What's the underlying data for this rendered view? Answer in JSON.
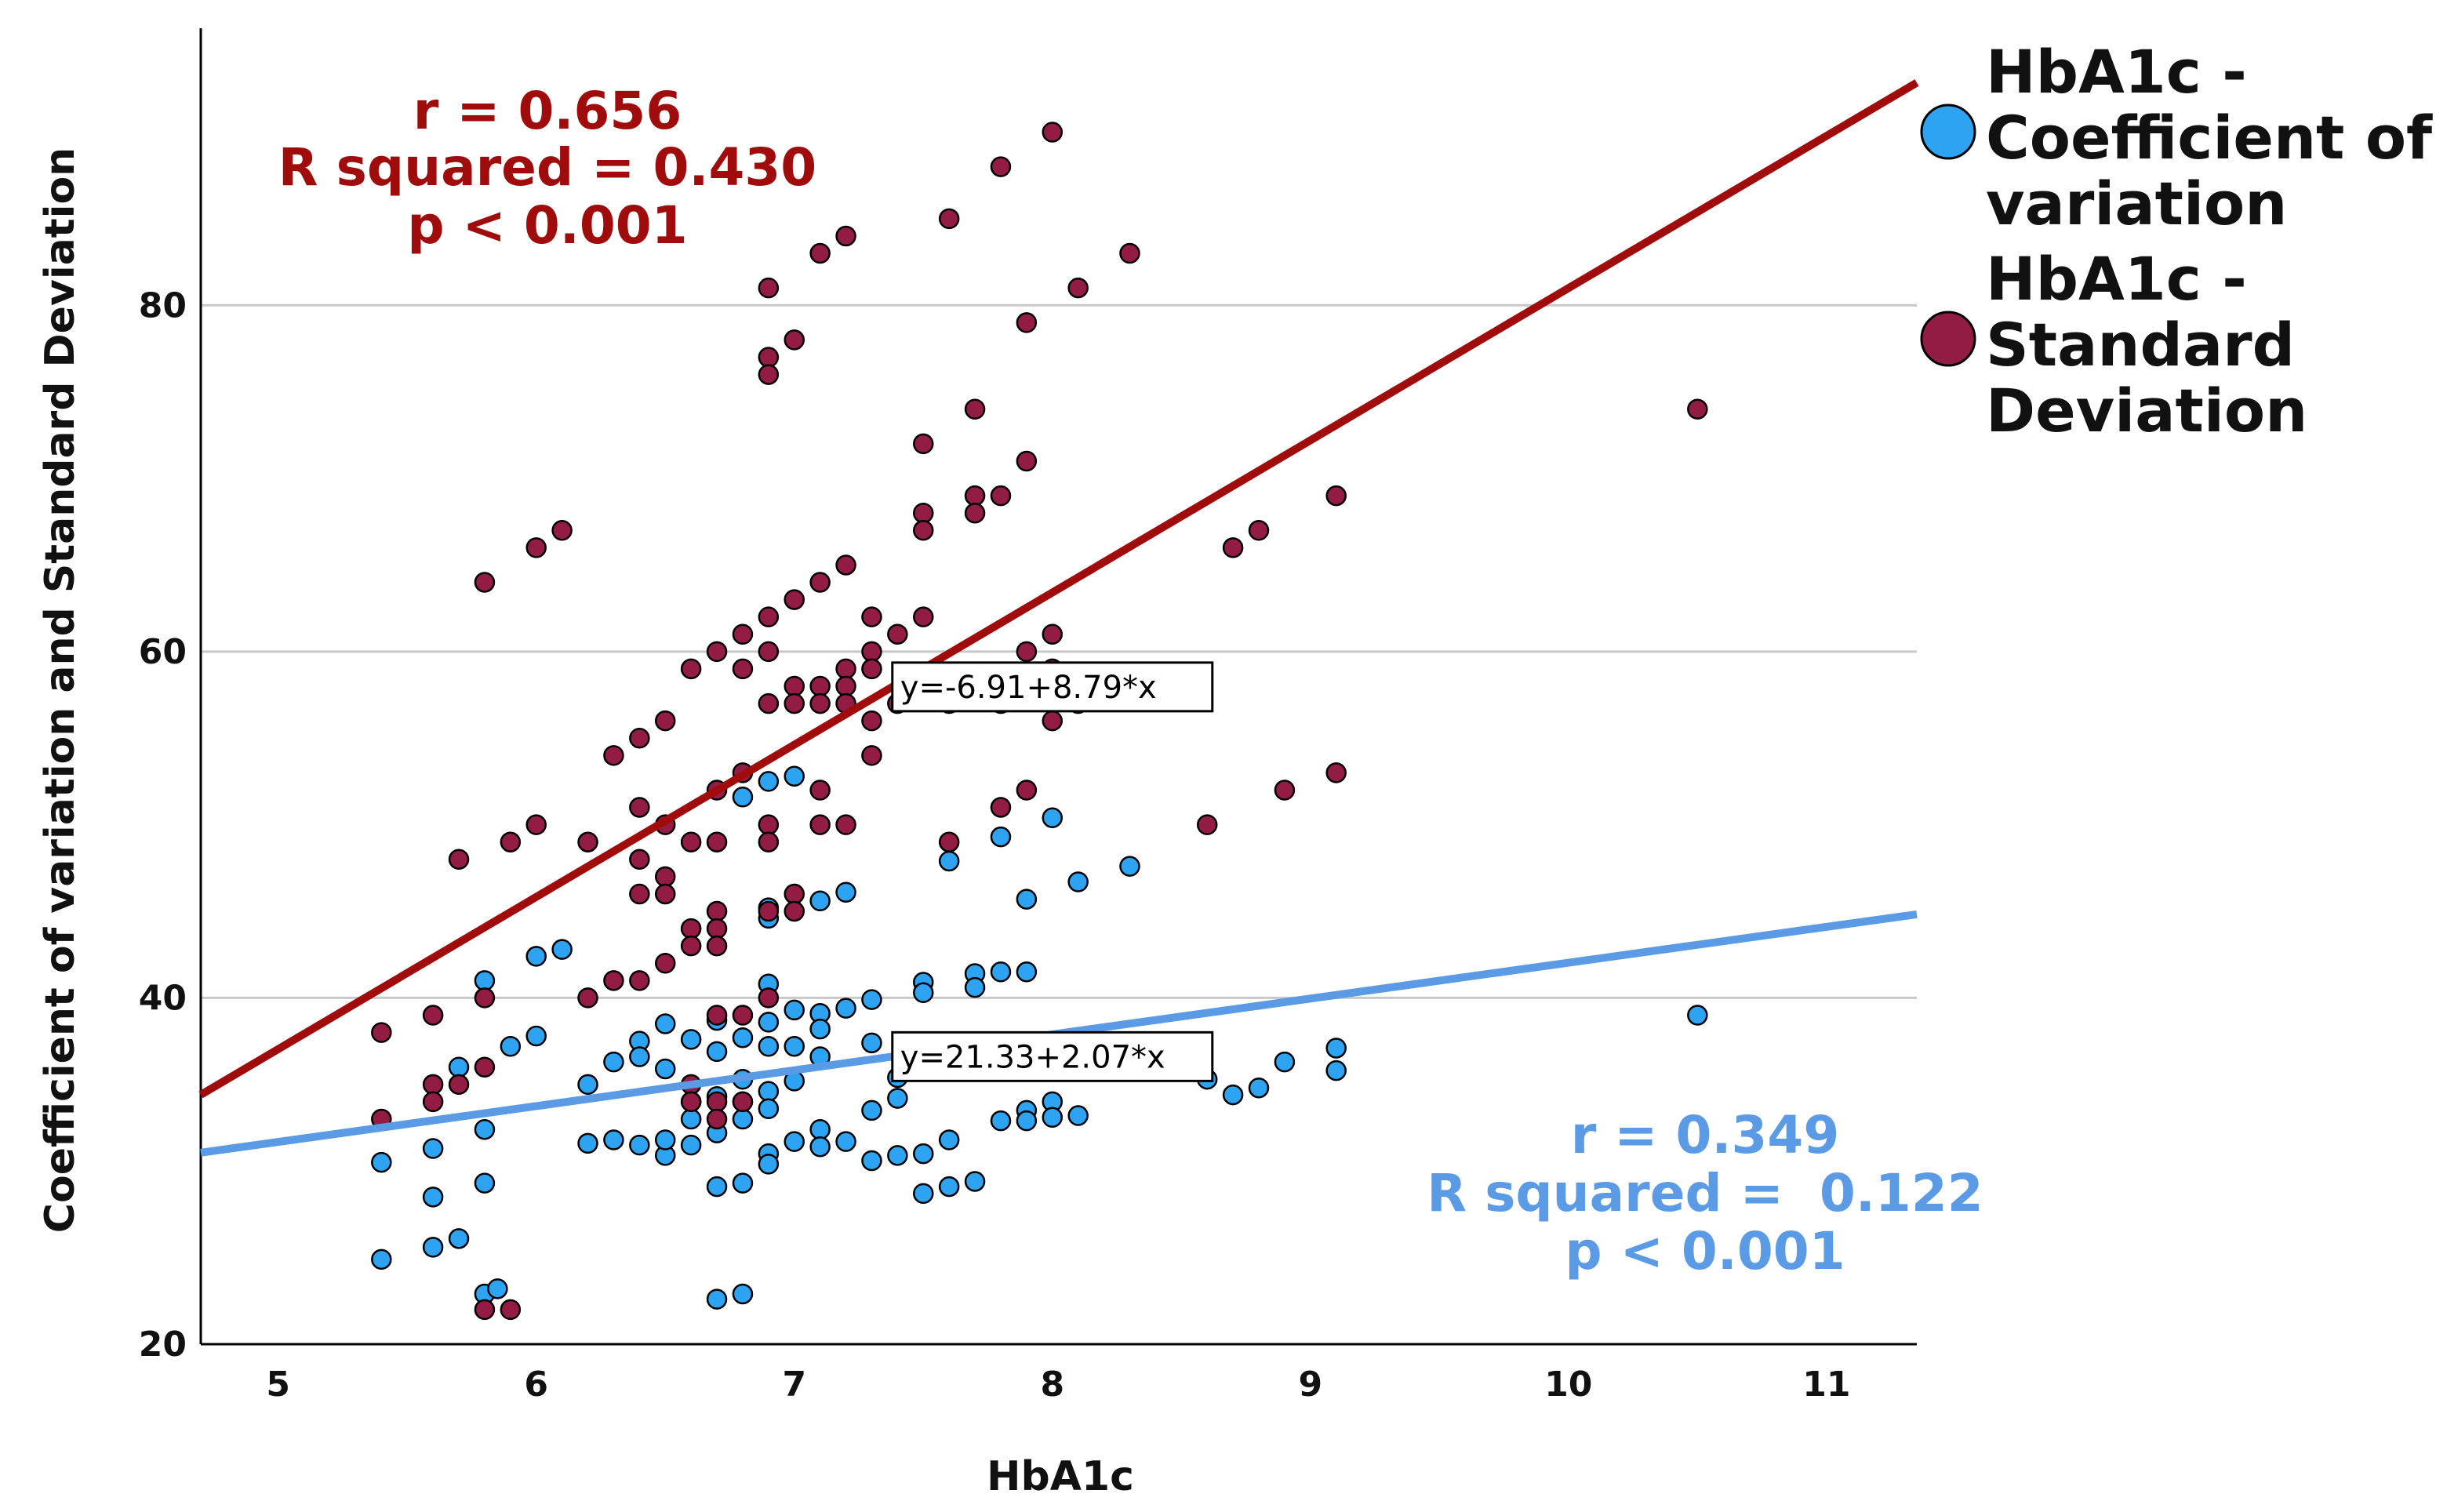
{
  "chart_data": {
    "type": "scatter",
    "xlabel": "HbA1c",
    "ylabel": "Coefficient of variation and Standard Deviation",
    "xlim": [
      4.7,
      11.35
    ],
    "ylim": [
      20,
      96
    ],
    "xticks": [
      5,
      6,
      7,
      8,
      9,
      10,
      11
    ],
    "yticks": [
      20,
      40,
      60,
      80
    ],
    "grid": "horizontal",
    "legend_position": "right",
    "series": [
      {
        "name": "HbA1c - Coefficient of variation",
        "legend_lines": [
          "HbA1c -",
          "Coefficient of",
          "variation"
        ],
        "color": "#2ea3f2",
        "line_color": "#5b9be6",
        "fit": {
          "intercept": 21.33,
          "slope": 2.07,
          "equation": "y=21.33+2.07*x"
        },
        "stats": [
          "r = 0.349",
          "R squared =  0.122",
          "p < 0.001"
        ],
        "points": [
          [
            5.4,
            30.5
          ],
          [
            5.4,
            24.9
          ],
          [
            5.6,
            28.5
          ],
          [
            5.6,
            25.6
          ],
          [
            5.6,
            31.3
          ],
          [
            5.7,
            36
          ],
          [
            5.7,
            26.1
          ],
          [
            5.8,
            41
          ],
          [
            5.8,
            29.3
          ],
          [
            5.8,
            32.4
          ],
          [
            5.8,
            22.9
          ],
          [
            5.85,
            23.2
          ],
          [
            5.9,
            37.2
          ],
          [
            6.0,
            37.8
          ],
          [
            6.0,
            42.4
          ],
          [
            6.1,
            42.8
          ],
          [
            6.2,
            35
          ],
          [
            6.2,
            31.6
          ],
          [
            6.3,
            36.3
          ],
          [
            6.3,
            31.8
          ],
          [
            6.4,
            37.5
          ],
          [
            6.4,
            36.6
          ],
          [
            6.4,
            31.5
          ],
          [
            6.5,
            38.5
          ],
          [
            6.5,
            35.9
          ],
          [
            6.5,
            30.9
          ],
          [
            6.5,
            31.8
          ],
          [
            6.6,
            37.6
          ],
          [
            6.6,
            34
          ],
          [
            6.6,
            33
          ],
          [
            6.6,
            31.5
          ],
          [
            6.7,
            38.7
          ],
          [
            6.7,
            36.9
          ],
          [
            6.7,
            34.3
          ],
          [
            6.7,
            32.2
          ],
          [
            6.7,
            29.1
          ],
          [
            6.7,
            22.6
          ],
          [
            6.8,
            37.7
          ],
          [
            6.8,
            35.3
          ],
          [
            6.8,
            34
          ],
          [
            6.8,
            33
          ],
          [
            6.8,
            29.3
          ],
          [
            6.8,
            22.9
          ],
          [
            6.8,
            51.6
          ],
          [
            6.9,
            40.8
          ],
          [
            6.9,
            38.6
          ],
          [
            6.9,
            37.2
          ],
          [
            6.9,
            34.6
          ],
          [
            6.9,
            33.6
          ],
          [
            6.9,
            31
          ],
          [
            6.9,
            30.4
          ],
          [
            6.9,
            45.2
          ],
          [
            6.9,
            44.6
          ],
          [
            6.9,
            52.5
          ],
          [
            7.0,
            52.8
          ],
          [
            7.0,
            39.3
          ],
          [
            7.0,
            37.2
          ],
          [
            7.0,
            35.2
          ],
          [
            7.0,
            31.7
          ],
          [
            7.1,
            45.6
          ],
          [
            7.1,
            39.1
          ],
          [
            7.1,
            38.2
          ],
          [
            7.1,
            36.6
          ],
          [
            7.1,
            32.4
          ],
          [
            7.1,
            31.4
          ],
          [
            7.2,
            46.1
          ],
          [
            7.2,
            39.4
          ],
          [
            7.2,
            31.7
          ],
          [
            7.3,
            39.9
          ],
          [
            7.3,
            37.4
          ],
          [
            7.3,
            33.5
          ],
          [
            7.3,
            30.6
          ],
          [
            7.4,
            35.4
          ],
          [
            7.4,
            34.2
          ],
          [
            7.4,
            30.9
          ],
          [
            7.5,
            40.9
          ],
          [
            7.5,
            40.3
          ],
          [
            7.5,
            36
          ],
          [
            7.5,
            31
          ],
          [
            7.5,
            28.7
          ],
          [
            7.6,
            47.9
          ],
          [
            7.6,
            36.5
          ],
          [
            7.6,
            31.8
          ],
          [
            7.6,
            29.1
          ],
          [
            7.7,
            41.4
          ],
          [
            7.7,
            40.6
          ],
          [
            7.7,
            29.4
          ],
          [
            7.8,
            49.3
          ],
          [
            7.8,
            41.5
          ],
          [
            7.8,
            32.9
          ],
          [
            7.9,
            45.7
          ],
          [
            7.9,
            41.5
          ],
          [
            7.9,
            33.5
          ],
          [
            7.9,
            32.9
          ],
          [
            8.0,
            50.4
          ],
          [
            8.0,
            34
          ],
          [
            8.0,
            33.1
          ],
          [
            8.1,
            46.7
          ],
          [
            8.1,
            33.2
          ],
          [
            8.3,
            47.6
          ],
          [
            8.6,
            35.3
          ],
          [
            8.7,
            34.4
          ],
          [
            8.8,
            34.8
          ],
          [
            8.9,
            36.3
          ],
          [
            9.1,
            37.1
          ],
          [
            9.1,
            35.8
          ],
          [
            10.5,
            39
          ]
        ]
      },
      {
        "name": "HbA1c - Standard Deviation",
        "legend_lines": [
          "HbA1c -",
          "Standard",
          "Deviation"
        ],
        "color": "#931c45",
        "line_color": "#a00b0b",
        "fit": {
          "intercept": -6.91,
          "slope": 8.79,
          "equation": "y=-6.91+8.79*x"
        },
        "stats": [
          "r = 0.656",
          "R squared = 0.430",
          "p < 0.001"
        ],
        "points": [
          [
            5.4,
            38
          ],
          [
            5.4,
            33
          ],
          [
            5.6,
            39
          ],
          [
            5.6,
            35
          ],
          [
            5.6,
            34
          ],
          [
            5.7,
            48
          ],
          [
            5.7,
            35
          ],
          [
            5.8,
            64
          ],
          [
            5.8,
            40
          ],
          [
            5.8,
            36
          ],
          [
            5.8,
            22
          ],
          [
            5.9,
            49
          ],
          [
            5.9,
            22
          ],
          [
            6.0,
            66
          ],
          [
            6.0,
            50
          ],
          [
            6.1,
            67
          ],
          [
            6.2,
            49
          ],
          [
            6.2,
            40
          ],
          [
            6.3,
            54
          ],
          [
            6.3,
            41
          ],
          [
            6.4,
            55
          ],
          [
            6.4,
            51
          ],
          [
            6.4,
            48
          ],
          [
            6.4,
            46
          ],
          [
            6.4,
            41
          ],
          [
            6.5,
            56
          ],
          [
            6.5,
            50
          ],
          [
            6.5,
            47
          ],
          [
            6.5,
            46
          ],
          [
            6.5,
            42
          ],
          [
            6.6,
            59
          ],
          [
            6.6,
            49
          ],
          [
            6.6,
            44
          ],
          [
            6.6,
            43
          ],
          [
            6.6,
            35
          ],
          [
            6.6,
            34
          ],
          [
            6.7,
            60
          ],
          [
            6.7,
            52
          ],
          [
            6.7,
            49
          ],
          [
            6.7,
            45
          ],
          [
            6.7,
            44
          ],
          [
            6.7,
            43
          ],
          [
            6.7,
            39
          ],
          [
            6.7,
            34
          ],
          [
            6.7,
            33
          ],
          [
            6.8,
            61
          ],
          [
            6.8,
            59
          ],
          [
            6.8,
            53
          ],
          [
            6.8,
            39
          ],
          [
            6.8,
            34
          ],
          [
            6.9,
            81
          ],
          [
            6.9,
            77
          ],
          [
            6.9,
            76
          ],
          [
            6.9,
            62
          ],
          [
            6.9,
            60
          ],
          [
            6.9,
            57
          ],
          [
            6.9,
            50
          ],
          [
            6.9,
            49
          ],
          [
            6.9,
            45
          ],
          [
            6.9,
            40
          ],
          [
            7.0,
            78
          ],
          [
            7.0,
            63
          ],
          [
            7.0,
            58
          ],
          [
            7.0,
            57
          ],
          [
            7.0,
            46
          ],
          [
            7.0,
            45
          ],
          [
            7.1,
            83
          ],
          [
            7.1,
            64
          ],
          [
            7.1,
            58
          ],
          [
            7.1,
            57
          ],
          [
            7.1,
            52
          ],
          [
            7.1,
            50
          ],
          [
            7.2,
            84
          ],
          [
            7.2,
            65
          ],
          [
            7.2,
            59
          ],
          [
            7.2,
            58
          ],
          [
            7.2,
            57
          ],
          [
            7.2,
            50
          ],
          [
            7.3,
            62
          ],
          [
            7.3,
            60
          ],
          [
            7.3,
            59
          ],
          [
            7.3,
            56
          ],
          [
            7.3,
            54
          ],
          [
            7.4,
            61
          ],
          [
            7.4,
            57
          ],
          [
            7.5,
            72
          ],
          [
            7.5,
            68
          ],
          [
            7.5,
            67
          ],
          [
            7.5,
            62
          ],
          [
            7.5,
            58
          ],
          [
            7.6,
            85
          ],
          [
            7.6,
            57
          ],
          [
            7.6,
            49
          ],
          [
            7.7,
            74
          ],
          [
            7.7,
            69
          ],
          [
            7.7,
            68
          ],
          [
            7.7,
            58
          ],
          [
            7.8,
            88
          ],
          [
            7.8,
            69
          ],
          [
            7.8,
            57
          ],
          [
            7.8,
            51
          ],
          [
            7.9,
            79
          ],
          [
            7.9,
            71
          ],
          [
            7.9,
            60
          ],
          [
            7.9,
            58
          ],
          [
            7.9,
            52
          ],
          [
            8.0,
            90
          ],
          [
            8.0,
            61
          ],
          [
            8.0,
            59
          ],
          [
            8.0,
            56
          ],
          [
            8.1,
            81
          ],
          [
            8.1,
            57
          ],
          [
            8.3,
            83
          ],
          [
            8.6,
            50
          ],
          [
            8.7,
            66
          ],
          [
            8.8,
            67
          ],
          [
            8.9,
            52
          ],
          [
            9.1,
            69
          ],
          [
            9.1,
            53
          ],
          [
            10.5,
            74
          ]
        ]
      }
    ]
  }
}
